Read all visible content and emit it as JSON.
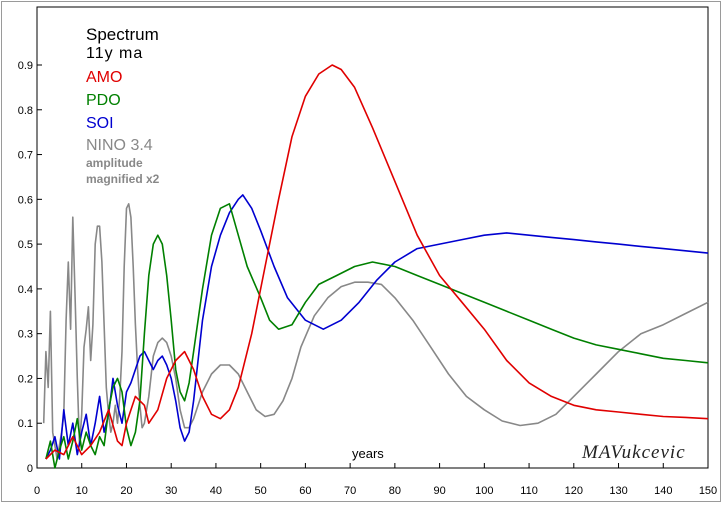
{
  "chart_data": {
    "type": "line",
    "title": "Spectrum",
    "subtitle": "11y ma",
    "xlabel": "years",
    "ylabel": "",
    "xlim": [
      0,
      150
    ],
    "ylim": [
      0,
      1
    ],
    "xticks": [
      "0",
      "10",
      "20",
      "30",
      "40",
      "50",
      "60",
      "70",
      "80",
      "90",
      "100",
      "110",
      "120",
      "130",
      "140",
      "150"
    ],
    "yticks": [
      "0",
      "0.1",
      "0.2",
      "0.3",
      "0.4",
      "0.5",
      "0.6",
      "0.7",
      "0.8",
      "0.9"
    ],
    "grid": false,
    "legend_position": "top-left",
    "note": "amplitude magnified x2",
    "watermark": "MAVukcevic",
    "series": [
      {
        "name": "AMO",
        "color": "#e00000",
        "points": [
          [
            2,
            0.02
          ],
          [
            4,
            0.04
          ],
          [
            6,
            0.03
          ],
          [
            8,
            0.07
          ],
          [
            10,
            0.03
          ],
          [
            12,
            0.05
          ],
          [
            14,
            0.08
          ],
          [
            16,
            0.13
          ],
          [
            18,
            0.06
          ],
          [
            19,
            0.05
          ],
          [
            20,
            0.1
          ],
          [
            22,
            0.16
          ],
          [
            24,
            0.14
          ],
          [
            25,
            0.1
          ],
          [
            27,
            0.13
          ],
          [
            29,
            0.2
          ],
          [
            31,
            0.24
          ],
          [
            33,
            0.26
          ],
          [
            35,
            0.22
          ],
          [
            37,
            0.16
          ],
          [
            39,
            0.12
          ],
          [
            41,
            0.11
          ],
          [
            43,
            0.13
          ],
          [
            45,
            0.18
          ],
          [
            48,
            0.3
          ],
          [
            51,
            0.45
          ],
          [
            54,
            0.6
          ],
          [
            57,
            0.74
          ],
          [
            60,
            0.83
          ],
          [
            63,
            0.88
          ],
          [
            66,
            0.9
          ],
          [
            68,
            0.89
          ],
          [
            71,
            0.85
          ],
          [
            75,
            0.76
          ],
          [
            80,
            0.64
          ],
          [
            85,
            0.52
          ],
          [
            90,
            0.43
          ],
          [
            95,
            0.37
          ],
          [
            100,
            0.31
          ],
          [
            105,
            0.24
          ],
          [
            110,
            0.19
          ],
          [
            115,
            0.16
          ],
          [
            120,
            0.14
          ],
          [
            125,
            0.13
          ],
          [
            130,
            0.125
          ],
          [
            135,
            0.12
          ],
          [
            140,
            0.115
          ],
          [
            145,
            0.113
          ],
          [
            150,
            0.11
          ]
        ]
      },
      {
        "name": "PDO",
        "color": "#008000",
        "points": [
          [
            2,
            0.02
          ],
          [
            3,
            0.06
          ],
          [
            4,
            0.0
          ],
          [
            5,
            0.04
          ],
          [
            6,
            0.07
          ],
          [
            7,
            0.02
          ],
          [
            8,
            0.06
          ],
          [
            9,
            0.11
          ],
          [
            10,
            0.04
          ],
          [
            11,
            0.08
          ],
          [
            12,
            0.05
          ],
          [
            13,
            0.03
          ],
          [
            14,
            0.07
          ],
          [
            15,
            0.05
          ],
          [
            16,
            0.13
          ],
          [
            17,
            0.18
          ],
          [
            18,
            0.2
          ],
          [
            19,
            0.17
          ],
          [
            20,
            0.09
          ],
          [
            21,
            0.05
          ],
          [
            22,
            0.08
          ],
          [
            23,
            0.15
          ],
          [
            24,
            0.3
          ],
          [
            25,
            0.43
          ],
          [
            26,
            0.5
          ],
          [
            27,
            0.52
          ],
          [
            28,
            0.5
          ],
          [
            29,
            0.43
          ],
          [
            30,
            0.33
          ],
          [
            31,
            0.22
          ],
          [
            32,
            0.17
          ],
          [
            33,
            0.15
          ],
          [
            34,
            0.19
          ],
          [
            35,
            0.26
          ],
          [
            37,
            0.4
          ],
          [
            39,
            0.52
          ],
          [
            41,
            0.58
          ],
          [
            43,
            0.59
          ],
          [
            45,
            0.52
          ],
          [
            47,
            0.45
          ],
          [
            50,
            0.38
          ],
          [
            52,
            0.33
          ],
          [
            54,
            0.31
          ],
          [
            57,
            0.32
          ],
          [
            60,
            0.37
          ],
          [
            63,
            0.41
          ],
          [
            67,
            0.43
          ],
          [
            71,
            0.45
          ],
          [
            75,
            0.46
          ],
          [
            80,
            0.45
          ],
          [
            85,
            0.43
          ],
          [
            90,
            0.41
          ],
          [
            95,
            0.39
          ],
          [
            100,
            0.37
          ],
          [
            105,
            0.35
          ],
          [
            110,
            0.33
          ],
          [
            115,
            0.31
          ],
          [
            120,
            0.29
          ],
          [
            125,
            0.275
          ],
          [
            130,
            0.265
          ],
          [
            135,
            0.255
          ],
          [
            140,
            0.245
          ],
          [
            145,
            0.24
          ],
          [
            150,
            0.235
          ]
        ]
      },
      {
        "name": "SOI",
        "color": "#0000d0",
        "points": [
          [
            2,
            0.02
          ],
          [
            3,
            0.04
          ],
          [
            4,
            0.07
          ],
          [
            5,
            0.02
          ],
          [
            6,
            0.13
          ],
          [
            7,
            0.05
          ],
          [
            8,
            0.1
          ],
          [
            9,
            0.03
          ],
          [
            10,
            0.08
          ],
          [
            11,
            0.12
          ],
          [
            12,
            0.05
          ],
          [
            13,
            0.1
          ],
          [
            14,
            0.16
          ],
          [
            15,
            0.08
          ],
          [
            16,
            0.12
          ],
          [
            17,
            0.2
          ],
          [
            18,
            0.14
          ],
          [
            19,
            0.1
          ],
          [
            20,
            0.17
          ],
          [
            21,
            0.19
          ],
          [
            22,
            0.22
          ],
          [
            23,
            0.25
          ],
          [
            24,
            0.26
          ],
          [
            25,
            0.24
          ],
          [
            26,
            0.22
          ],
          [
            27,
            0.24
          ],
          [
            28,
            0.25
          ],
          [
            29,
            0.23
          ],
          [
            30,
            0.2
          ],
          [
            31,
            0.15
          ],
          [
            32,
            0.09
          ],
          [
            33,
            0.06
          ],
          [
            34,
            0.08
          ],
          [
            35,
            0.15
          ],
          [
            37,
            0.33
          ],
          [
            39,
            0.45
          ],
          [
            41,
            0.52
          ],
          [
            43,
            0.57
          ],
          [
            45,
            0.6
          ],
          [
            46,
            0.61
          ],
          [
            48,
            0.58
          ],
          [
            50,
            0.53
          ],
          [
            53,
            0.45
          ],
          [
            56,
            0.38
          ],
          [
            60,
            0.33
          ],
          [
            64,
            0.31
          ],
          [
            68,
            0.33
          ],
          [
            72,
            0.37
          ],
          [
            76,
            0.42
          ],
          [
            80,
            0.46
          ],
          [
            85,
            0.49
          ],
          [
            90,
            0.5
          ],
          [
            95,
            0.51
          ],
          [
            100,
            0.52
          ],
          [
            105,
            0.525
          ],
          [
            110,
            0.52
          ],
          [
            115,
            0.515
          ],
          [
            120,
            0.51
          ],
          [
            125,
            0.505
          ],
          [
            130,
            0.5
          ],
          [
            135,
            0.495
          ],
          [
            140,
            0.49
          ],
          [
            145,
            0.485
          ],
          [
            150,
            0.48
          ]
        ]
      },
      {
        "name": "NINO 3.4",
        "color": "#888888",
        "points": [
          [
            1.5,
            0.1
          ],
          [
            2,
            0.26
          ],
          [
            2.5,
            0.18
          ],
          [
            3,
            0.35
          ],
          [
            3.5,
            0.08
          ],
          [
            4,
            0.05
          ],
          [
            4.5,
            0.02
          ],
          [
            5,
            0.05
          ],
          [
            5.5,
            0.08
          ],
          [
            6,
            0.12
          ],
          [
            6.5,
            0.33
          ],
          [
            7,
            0.46
          ],
          [
            7.5,
            0.31
          ],
          [
            8,
            0.56
          ],
          [
            8.5,
            0.39
          ],
          [
            9,
            0.2
          ],
          [
            9.5,
            0.05
          ],
          [
            10,
            0.12
          ],
          [
            10.5,
            0.27
          ],
          [
            11,
            0.31
          ],
          [
            11.5,
            0.36
          ],
          [
            12,
            0.24
          ],
          [
            12.5,
            0.32
          ],
          [
            13,
            0.5
          ],
          [
            13.5,
            0.54
          ],
          [
            14,
            0.54
          ],
          [
            14.5,
            0.46
          ],
          [
            15,
            0.32
          ],
          [
            15.5,
            0.18
          ],
          [
            16,
            0.12
          ],
          [
            16.5,
            0.08
          ],
          [
            17,
            0.1
          ],
          [
            17.5,
            0.14
          ],
          [
            18,
            0.1
          ],
          [
            18.5,
            0.16
          ],
          [
            19,
            0.26
          ],
          [
            19.5,
            0.45
          ],
          [
            20,
            0.58
          ],
          [
            20.5,
            0.59
          ],
          [
            21,
            0.56
          ],
          [
            21.5,
            0.45
          ],
          [
            22,
            0.32
          ],
          [
            22.5,
            0.22
          ],
          [
            23,
            0.14
          ],
          [
            23.5,
            0.09
          ],
          [
            24,
            0.1
          ],
          [
            25,
            0.16
          ],
          [
            26,
            0.25
          ],
          [
            27,
            0.28
          ],
          [
            28,
            0.29
          ],
          [
            29,
            0.28
          ],
          [
            30,
            0.25
          ],
          [
            31,
            0.2
          ],
          [
            32,
            0.13
          ],
          [
            33,
            0.09
          ],
          [
            34,
            0.09
          ],
          [
            35,
            0.11
          ],
          [
            37,
            0.17
          ],
          [
            39,
            0.21
          ],
          [
            41,
            0.23
          ],
          [
            43,
            0.23
          ],
          [
            45,
            0.21
          ],
          [
            47,
            0.17
          ],
          [
            49,
            0.13
          ],
          [
            51,
            0.115
          ],
          [
            53,
            0.12
          ],
          [
            55,
            0.15
          ],
          [
            57,
            0.2
          ],
          [
            59,
            0.27
          ],
          [
            62,
            0.34
          ],
          [
            65,
            0.38
          ],
          [
            68,
            0.405
          ],
          [
            71,
            0.415
          ],
          [
            74,
            0.415
          ],
          [
            77,
            0.41
          ],
          [
            80,
            0.38
          ],
          [
            84,
            0.33
          ],
          [
            88,
            0.27
          ],
          [
            92,
            0.21
          ],
          [
            96,
            0.16
          ],
          [
            100,
            0.13
          ],
          [
            104,
            0.105
          ],
          [
            108,
            0.095
          ],
          [
            112,
            0.1
          ],
          [
            116,
            0.12
          ],
          [
            120,
            0.16
          ],
          [
            125,
            0.21
          ],
          [
            130,
            0.26
          ],
          [
            135,
            0.3
          ],
          [
            140,
            0.32
          ],
          [
            145,
            0.345
          ],
          [
            150,
            0.37
          ]
        ]
      }
    ]
  }
}
